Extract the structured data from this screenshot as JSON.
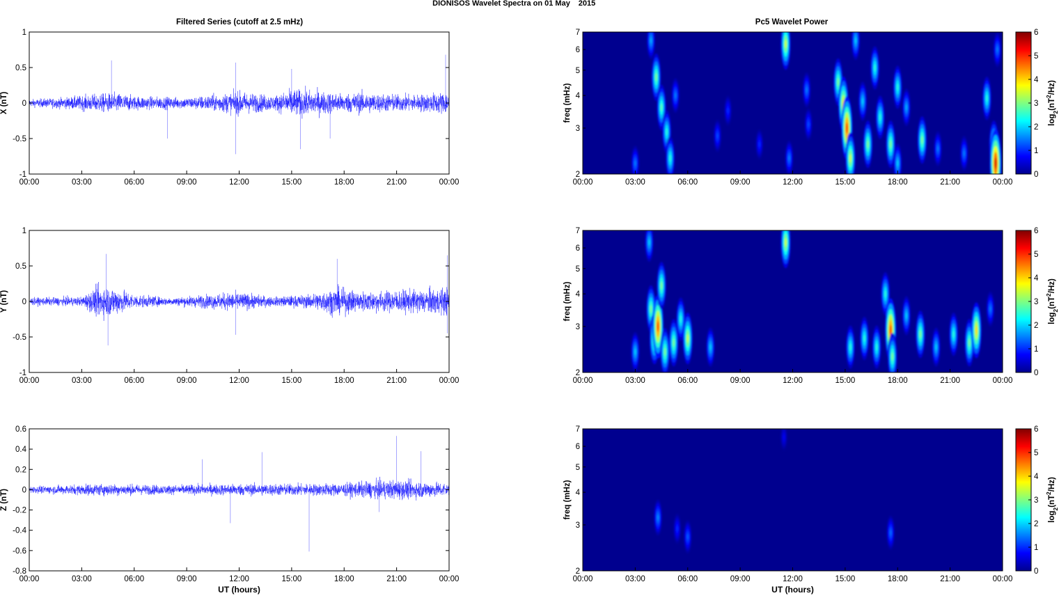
{
  "page_title_parts": [
    "DIONISOS Wavelet Spectra on 01 May",
    "2015"
  ],
  "left_column_title": "Filtered Series (cutoff at 2.5 mHz)",
  "right_column_title": "Pc5 Wavelet Power",
  "colors": {
    "trace": "#0000ff",
    "axis": "#000000",
    "spectrum_bg": "#00008f"
  },
  "chart_data": [
    {
      "id": "x-series",
      "type": "line",
      "ylabel": "X (nT)",
      "xlabel": "",
      "x_ticks": [
        "00:00",
        "03:00",
        "06:00",
        "09:00",
        "12:00",
        "15:00",
        "18:00",
        "21:00",
        "00:00"
      ],
      "xlim_hours": [
        0,
        24
      ],
      "ylim": [
        -1,
        1
      ],
      "y_ticks": [
        -1,
        -0.5,
        0,
        0.5,
        1
      ],
      "y_tick_labels": [
        "-1",
        "-0.5",
        "0",
        "0.5",
        "1"
      ],
      "noise_envelope": [
        {
          "x": 0,
          "y": 0.08
        },
        {
          "x": 2,
          "y": 0.12
        },
        {
          "x": 4,
          "y": 0.2
        },
        {
          "x": 5,
          "y": 0.22
        },
        {
          "x": 6,
          "y": 0.15
        },
        {
          "x": 9,
          "y": 0.12
        },
        {
          "x": 11,
          "y": 0.2
        },
        {
          "x": 12,
          "y": 0.25
        },
        {
          "x": 14,
          "y": 0.16
        },
        {
          "x": 15,
          "y": 0.3
        },
        {
          "x": 16,
          "y": 0.28
        },
        {
          "x": 18,
          "y": 0.2
        },
        {
          "x": 19,
          "y": 0.24
        },
        {
          "x": 20,
          "y": 0.2
        },
        {
          "x": 22,
          "y": 0.18
        },
        {
          "x": 24,
          "y": 0.25
        }
      ],
      "peaks": [
        {
          "x": 4.7,
          "y": 0.6
        },
        {
          "x": 7.9,
          "y": -0.5
        },
        {
          "x": 11.8,
          "y": 0.57
        },
        {
          "x": 11.8,
          "y": -0.72
        },
        {
          "x": 15.5,
          "y": -0.65
        },
        {
          "x": 17.2,
          "y": -0.5
        },
        {
          "x": 23.8,
          "y": 0.68
        },
        {
          "x": 24,
          "y": -0.55
        },
        {
          "x": 15.0,
          "y": 0.48
        }
      ]
    },
    {
      "id": "y-series",
      "type": "line",
      "ylabel": "Y (nT)",
      "xlabel": "",
      "x_ticks": [
        "00:00",
        "03:00",
        "06:00",
        "09:00",
        "12:00",
        "15:00",
        "18:00",
        "21:00",
        "00:00"
      ],
      "xlim_hours": [
        0,
        24
      ],
      "ylim": [
        -1,
        1
      ],
      "y_ticks": [
        -1,
        -0.5,
        0,
        0.5,
        1
      ],
      "y_tick_labels": [
        "-1",
        "-0.5",
        "0",
        "0.5",
        "1"
      ],
      "noise_envelope": [
        {
          "x": 0,
          "y": 0.08
        },
        {
          "x": 3,
          "y": 0.1
        },
        {
          "x": 4,
          "y": 0.35
        },
        {
          "x": 5,
          "y": 0.3
        },
        {
          "x": 6,
          "y": 0.15
        },
        {
          "x": 8,
          "y": 0.08
        },
        {
          "x": 11.8,
          "y": 0.2
        },
        {
          "x": 14,
          "y": 0.1
        },
        {
          "x": 16,
          "y": 0.15
        },
        {
          "x": 17.5,
          "y": 0.3
        },
        {
          "x": 19,
          "y": 0.22
        },
        {
          "x": 22,
          "y": 0.25
        },
        {
          "x": 24,
          "y": 0.3
        }
      ],
      "peaks": [
        {
          "x": 4.4,
          "y": 0.67
        },
        {
          "x": 4.5,
          "y": -0.62
        },
        {
          "x": 11.8,
          "y": -0.47
        },
        {
          "x": 17.6,
          "y": 0.6
        },
        {
          "x": 23.9,
          "y": 0.65
        },
        {
          "x": 23.9,
          "y": -0.45
        }
      ]
    },
    {
      "id": "z-series",
      "type": "line",
      "ylabel": "Z (nT)",
      "xlabel": "UT (hours)",
      "x_ticks": [
        "00:00",
        "03:00",
        "06:00",
        "09:00",
        "12:00",
        "15:00",
        "18:00",
        "21:00",
        "00:00"
      ],
      "xlim_hours": [
        0,
        24
      ],
      "ylim": [
        -0.8,
        0.6
      ],
      "y_ticks": [
        -0.8,
        -0.6,
        -0.4,
        -0.2,
        0,
        0.2,
        0.4,
        0.6
      ],
      "y_tick_labels": [
        "-0.8",
        "-0.6",
        "-0.4",
        "-0.2",
        "0",
        "0.2",
        "0.4",
        "0.6"
      ],
      "noise_envelope": [
        {
          "x": 0,
          "y": 0.05
        },
        {
          "x": 4,
          "y": 0.09
        },
        {
          "x": 8,
          "y": 0.07
        },
        {
          "x": 12,
          "y": 0.09
        },
        {
          "x": 16,
          "y": 0.09
        },
        {
          "x": 18,
          "y": 0.1
        },
        {
          "x": 20,
          "y": 0.14
        },
        {
          "x": 21,
          "y": 0.15
        },
        {
          "x": 24,
          "y": 0.1
        }
      ],
      "peaks": [
        {
          "x": 11.5,
          "y": -0.33
        },
        {
          "x": 13.3,
          "y": 0.37
        },
        {
          "x": 16.0,
          "y": -0.61
        },
        {
          "x": 21.0,
          "y": 0.53
        },
        {
          "x": 22.4,
          "y": 0.38
        },
        {
          "x": 9.9,
          "y": 0.3
        },
        {
          "x": 20.0,
          "y": -0.22
        }
      ]
    },
    {
      "id": "x-spectrum",
      "type": "heatmap",
      "ylabel": "freq (mHz)",
      "xlabel": "",
      "x_ticks": [
        "00:00",
        "03:00",
        "06:00",
        "09:00",
        "12:00",
        "15:00",
        "18:00",
        "21:00",
        "00:00"
      ],
      "xlim_hours": [
        0,
        24
      ],
      "ylim_mhz": [
        2,
        7
      ],
      "y_scale": "log",
      "y_ticks": [
        2,
        3,
        4,
        5,
        6,
        7
      ],
      "y_tick_labels": [
        "2",
        "3",
        "4",
        "5",
        "6",
        "7"
      ],
      "colorbar": {
        "label": "log2(nT2/Hz)",
        "range": [
          0,
          6
        ],
        "ticks": [
          "0",
          "1",
          "2",
          "3",
          "4",
          "5",
          "6"
        ]
      },
      "blobs": [
        {
          "t": 3.9,
          "f": 6.5,
          "p": 1.8
        },
        {
          "t": 3.0,
          "f": 2.2,
          "p": 1.5
        },
        {
          "t": 4.2,
          "f": 4.7,
          "p": 3.0
        },
        {
          "t": 4.5,
          "f": 3.6,
          "p": 2.8
        },
        {
          "t": 4.8,
          "f": 2.9,
          "p": 2.5
        },
        {
          "t": 5.0,
          "f": 2.3,
          "p": 2.5
        },
        {
          "t": 5.3,
          "f": 4.0,
          "p": 1.5
        },
        {
          "t": 7.7,
          "f": 2.8,
          "p": 1.2
        },
        {
          "t": 8.3,
          "f": 3.5,
          "p": 1.0
        },
        {
          "t": 10.1,
          "f": 2.6,
          "p": 1.0
        },
        {
          "t": 11.6,
          "f": 6.3,
          "p": 3.5
        },
        {
          "t": 11.8,
          "f": 2.3,
          "p": 1.5
        },
        {
          "t": 12.8,
          "f": 4.2,
          "p": 1.5
        },
        {
          "t": 12.9,
          "f": 3.1,
          "p": 1.2
        },
        {
          "t": 14.6,
          "f": 4.5,
          "p": 3.0
        },
        {
          "t": 14.9,
          "f": 3.7,
          "p": 4.0
        },
        {
          "t": 15.1,
          "f": 3.0,
          "p": 5.0
        },
        {
          "t": 15.3,
          "f": 2.3,
          "p": 3.5
        },
        {
          "t": 15.6,
          "f": 6.5,
          "p": 2.0
        },
        {
          "t": 16.0,
          "f": 3.8,
          "p": 2.0
        },
        {
          "t": 16.3,
          "f": 2.6,
          "p": 3.0
        },
        {
          "t": 16.7,
          "f": 5.1,
          "p": 2.5
        },
        {
          "t": 17.0,
          "f": 3.3,
          "p": 2.5
        },
        {
          "t": 17.6,
          "f": 2.6,
          "p": 3.0
        },
        {
          "t": 18.0,
          "f": 4.3,
          "p": 2.5
        },
        {
          "t": 18.0,
          "f": 2.2,
          "p": 2.0
        },
        {
          "t": 18.5,
          "f": 3.6,
          "p": 1.8
        },
        {
          "t": 19.4,
          "f": 2.7,
          "p": 3.0
        },
        {
          "t": 20.3,
          "f": 2.5,
          "p": 1.5
        },
        {
          "t": 21.8,
          "f": 2.4,
          "p": 1.5
        },
        {
          "t": 23.1,
          "f": 3.9,
          "p": 2.5
        },
        {
          "t": 23.5,
          "f": 2.6,
          "p": 3.0
        },
        {
          "t": 23.6,
          "f": 2.2,
          "p": 5.5
        },
        {
          "t": 23.7,
          "f": 6.0,
          "p": 1.5
        }
      ]
    },
    {
      "id": "y-spectrum",
      "type": "heatmap",
      "ylabel": "freq (mHz)",
      "xlabel": "",
      "x_ticks": [
        "00:00",
        "03:00",
        "06:00",
        "09:00",
        "12:00",
        "15:00",
        "18:00",
        "21:00",
        "00:00"
      ],
      "xlim_hours": [
        0,
        24
      ],
      "ylim_mhz": [
        2,
        7
      ],
      "y_scale": "log",
      "y_ticks": [
        2,
        3,
        4,
        5,
        6,
        7
      ],
      "y_tick_labels": [
        "2",
        "3",
        "4",
        "5",
        "6",
        "7"
      ],
      "colorbar": {
        "label": "log2(nT2/Hz)",
        "range": [
          0,
          6
        ],
        "ticks": [
          "0",
          "1",
          "2",
          "3",
          "4",
          "5",
          "6"
        ]
      },
      "blobs": [
        {
          "t": 3.0,
          "f": 2.4,
          "p": 2.0
        },
        {
          "t": 3.9,
          "f": 3.5,
          "p": 3.0
        },
        {
          "t": 4.1,
          "f": 2.7,
          "p": 3.5
        },
        {
          "t": 4.3,
          "f": 3.0,
          "p": 5.0
        },
        {
          "t": 4.5,
          "f": 4.3,
          "p": 3.0
        },
        {
          "t": 4.7,
          "f": 2.4,
          "p": 3.0
        },
        {
          "t": 3.8,
          "f": 6.3,
          "p": 2.0
        },
        {
          "t": 5.2,
          "f": 2.6,
          "p": 3.0
        },
        {
          "t": 5.6,
          "f": 3.2,
          "p": 2.5
        },
        {
          "t": 6.0,
          "f": 2.7,
          "p": 3.5
        },
        {
          "t": 7.3,
          "f": 2.5,
          "p": 2.0
        },
        {
          "t": 11.6,
          "f": 6.3,
          "p": 3.5
        },
        {
          "t": 15.3,
          "f": 2.5,
          "p": 2.5
        },
        {
          "t": 16.1,
          "f": 2.7,
          "p": 2.5
        },
        {
          "t": 16.8,
          "f": 2.5,
          "p": 2.5
        },
        {
          "t": 17.3,
          "f": 4.0,
          "p": 2.5
        },
        {
          "t": 17.6,
          "f": 2.9,
          "p": 5.0
        },
        {
          "t": 17.7,
          "f": 2.3,
          "p": 3.0
        },
        {
          "t": 18.5,
          "f": 3.3,
          "p": 2.0
        },
        {
          "t": 19.3,
          "f": 2.8,
          "p": 3.0
        },
        {
          "t": 20.2,
          "f": 2.5,
          "p": 2.0
        },
        {
          "t": 21.2,
          "f": 2.8,
          "p": 2.5
        },
        {
          "t": 22.1,
          "f": 2.6,
          "p": 3.0
        },
        {
          "t": 22.5,
          "f": 2.9,
          "p": 4.0
        },
        {
          "t": 23.3,
          "f": 3.5,
          "p": 1.5
        }
      ]
    },
    {
      "id": "z-spectrum",
      "type": "heatmap",
      "ylabel": "freq (mHz)",
      "xlabel": "UT (hours)",
      "x_ticks": [
        "00:00",
        "03:00",
        "06:00",
        "09:00",
        "12:00",
        "15:00",
        "18:00",
        "21:00",
        "00:00"
      ],
      "xlim_hours": [
        0,
        24
      ],
      "ylim_mhz": [
        2,
        7
      ],
      "y_scale": "log",
      "y_ticks": [
        2,
        3,
        4,
        5,
        6,
        7
      ],
      "y_tick_labels": [
        "2",
        "3",
        "4",
        "5",
        "6",
        "7"
      ],
      "colorbar": {
        "label": "log2(nT2/Hz)",
        "range": [
          0,
          6
        ],
        "ticks": [
          "0",
          "1",
          "2",
          "3",
          "4",
          "5",
          "6"
        ]
      },
      "blobs": [
        {
          "t": 4.3,
          "f": 3.2,
          "p": 1.6
        },
        {
          "t": 5.4,
          "f": 2.9,
          "p": 1.0
        },
        {
          "t": 6.0,
          "f": 2.7,
          "p": 1.3
        },
        {
          "t": 17.6,
          "f": 2.8,
          "p": 1.4
        },
        {
          "t": 11.5,
          "f": 6.5,
          "p": 0.7
        }
      ]
    }
  ]
}
